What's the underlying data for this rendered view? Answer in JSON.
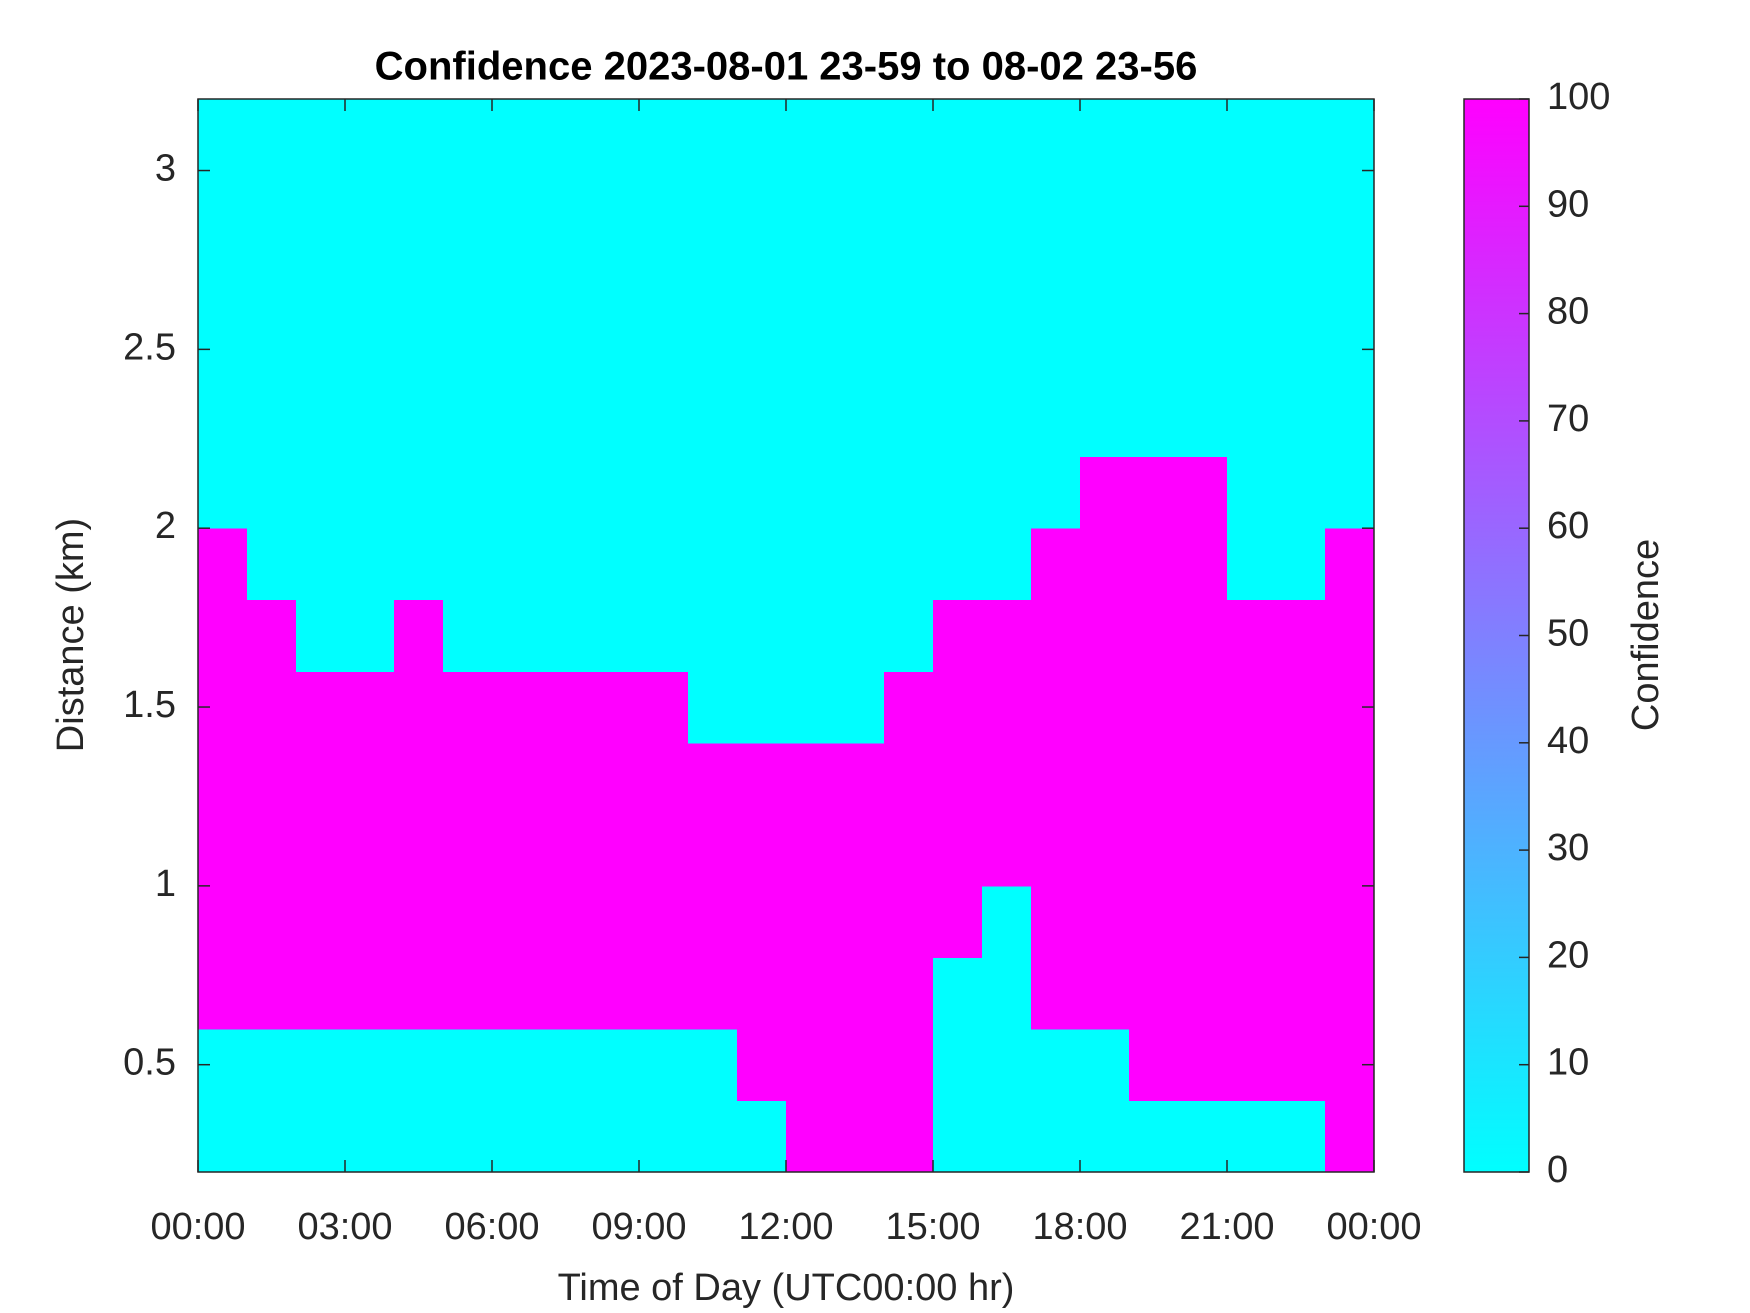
{
  "chart_data": {
    "type": "heatmap",
    "title": "Confidence 2023-08-01 23-59 to 08-02 23-56",
    "x_label": "Time of Day (UTC00:00 hr)",
    "y_label": "Distance (km)",
    "xbins": [
      0,
      1,
      2,
      3,
      4,
      5,
      6,
      7,
      8,
      9,
      10,
      11,
      12,
      13,
      14,
      15,
      16,
      17,
      18,
      19,
      20,
      21,
      22,
      23,
      24
    ],
    "ybins": [
      0.2,
      0.4,
      0.6,
      0.8,
      1,
      1.2,
      1.4,
      1.6,
      1.8,
      2,
      2.2,
      2.4,
      2.6,
      2.8,
      3,
      3.2
    ],
    "z": [
      [
        0,
        0,
        0,
        0,
        0,
        0,
        0,
        0,
        0,
        0,
        0,
        0,
        100,
        100,
        100,
        0,
        0,
        0,
        0,
        0,
        0,
        0,
        0,
        100
      ],
      [
        0,
        0,
        0,
        0,
        0,
        0,
        0,
        0,
        0,
        0,
        0,
        100,
        100,
        100,
        100,
        0,
        0,
        0,
        0,
        100,
        100,
        100,
        100,
        100
      ],
      [
        100,
        100,
        100,
        100,
        100,
        100,
        100,
        100,
        100,
        100,
        100,
        100,
        100,
        100,
        100,
        0,
        0,
        100,
        100,
        100,
        100,
        100,
        100,
        100
      ],
      [
        100,
        100,
        100,
        100,
        100,
        100,
        100,
        100,
        100,
        100,
        100,
        100,
        100,
        100,
        100,
        100,
        0,
        100,
        100,
        100,
        100,
        100,
        100,
        100
      ],
      [
        100,
        100,
        100,
        100,
        100,
        100,
        100,
        100,
        100,
        100,
        100,
        100,
        100,
        100,
        100,
        100,
        100,
        100,
        100,
        100,
        100,
        100,
        100,
        100
      ],
      [
        100,
        100,
        100,
        100,
        100,
        100,
        100,
        100,
        100,
        100,
        100,
        100,
        100,
        100,
        100,
        100,
        100,
        100,
        100,
        100,
        100,
        100,
        100,
        100
      ],
      [
        100,
        100,
        100,
        100,
        100,
        100,
        100,
        100,
        100,
        100,
        0,
        0,
        0,
        0,
        100,
        100,
        100,
        100,
        100,
        100,
        100,
        100,
        100,
        100
      ],
      [
        100,
        100,
        0,
        0,
        100,
        0,
        0,
        0,
        0,
        0,
        0,
        0,
        0,
        0,
        0,
        100,
        100,
        100,
        100,
        100,
        100,
        100,
        100,
        100
      ],
      [
        100,
        0,
        0,
        0,
        0,
        0,
        0,
        0,
        0,
        0,
        0,
        0,
        0,
        0,
        0,
        0,
        0,
        100,
        100,
        100,
        100,
        0,
        0,
        100
      ],
      [
        0,
        0,
        0,
        0,
        0,
        0,
        0,
        0,
        0,
        0,
        0,
        0,
        0,
        0,
        0,
        0,
        0,
        0,
        100,
        100,
        100,
        0,
        0,
        0
      ],
      [
        0,
        0,
        0,
        0,
        0,
        0,
        0,
        0,
        0,
        0,
        0,
        0,
        0,
        0,
        0,
        0,
        0,
        0,
        0,
        0,
        0,
        0,
        0,
        0
      ],
      [
        0,
        0,
        0,
        0,
        0,
        0,
        0,
        0,
        0,
        0,
        0,
        0,
        0,
        0,
        0,
        0,
        0,
        0,
        0,
        0,
        0,
        0,
        0,
        0
      ],
      [
        0,
        0,
        0,
        0,
        0,
        0,
        0,
        0,
        0,
        0,
        0,
        0,
        0,
        0,
        0,
        0,
        0,
        0,
        0,
        0,
        0,
        0,
        0,
        0
      ],
      [
        0,
        0,
        0,
        0,
        0,
        0,
        0,
        0,
        0,
        0,
        0,
        0,
        0,
        0,
        0,
        0,
        0,
        0,
        0,
        0,
        0,
        0,
        0,
        0
      ],
      [
        0,
        0,
        0,
        0,
        0,
        0,
        0,
        0,
        0,
        0,
        0,
        0,
        0,
        0,
        0,
        0,
        0,
        0,
        0,
        0,
        0,
        0,
        0,
        0
      ]
    ],
    "xlim": [
      0,
      24
    ],
    "ylim": [
      0.2,
      3.2
    ],
    "xticks": [
      {
        "value": 0,
        "label": "00:00"
      },
      {
        "value": 3,
        "label": "03:00"
      },
      {
        "value": 6,
        "label": "06:00"
      },
      {
        "value": 9,
        "label": "09:00"
      },
      {
        "value": 12,
        "label": "12:00"
      },
      {
        "value": 15,
        "label": "15:00"
      },
      {
        "value": 18,
        "label": "18:00"
      },
      {
        "value": 21,
        "label": "21:00"
      },
      {
        "value": 24,
        "label": "00:00"
      }
    ],
    "yticks": [
      0.5,
      1,
      1.5,
      2,
      2.5,
      3
    ],
    "colorbar": {
      "label": "Confidence",
      "clim": [
        0,
        100
      ],
      "ticks": [
        0,
        10,
        20,
        30,
        40,
        50,
        60,
        70,
        80,
        90,
        100
      ],
      "colormap": "cool"
    }
  }
}
